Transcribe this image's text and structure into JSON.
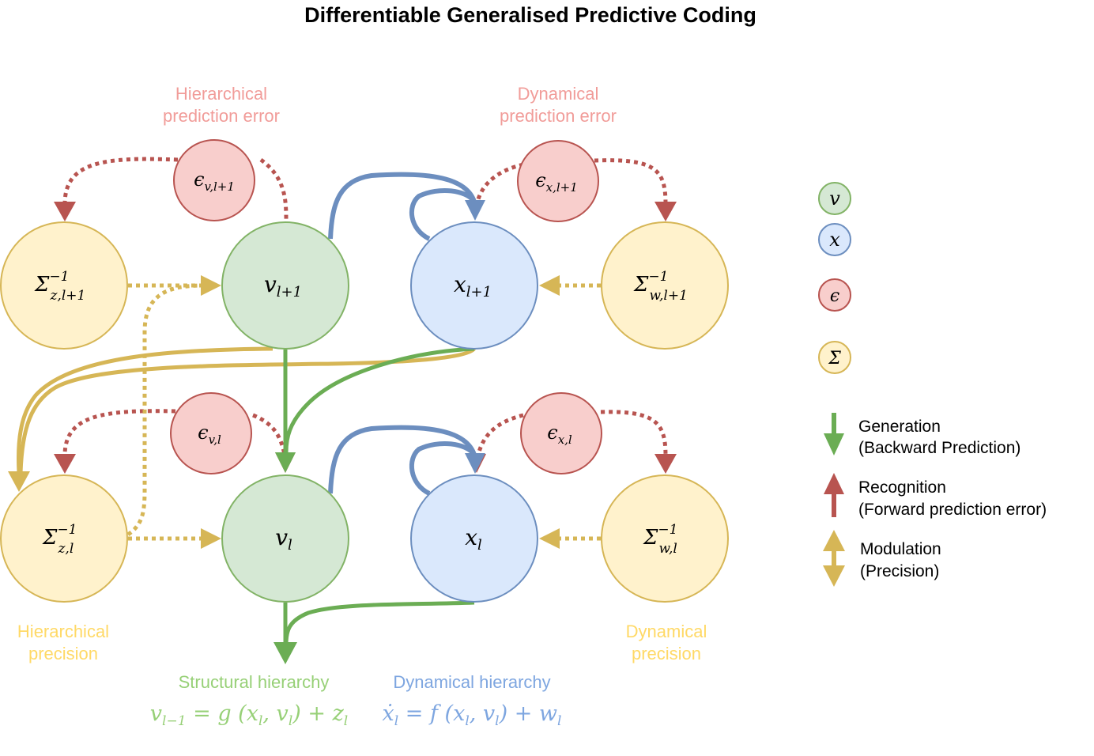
{
  "title": "Differentiable Generalised Predictive Coding",
  "colors": {
    "green_fill": "#d5e8d4",
    "green_stroke": "#82b366",
    "green_arrow": "#6bad54",
    "blue_fill": "#dae8fc",
    "blue_stroke": "#6c8ebf",
    "red_fill": "#f8cecc",
    "red_stroke": "#b85450",
    "yellow_fill": "#fff2cc",
    "yellow_stroke": "#d6b656",
    "pink_text": "#f19c99",
    "yellow_text": "#ffd966",
    "green_text": "#97d077",
    "blue_text": "#7ea6e0"
  },
  "labels": {
    "hier_error": [
      "Hierarchical",
      "prediction error"
    ],
    "dyn_error": [
      "Dynamical",
      "prediction error"
    ],
    "hier_precision": [
      "Hierarchical",
      "precision"
    ],
    "dyn_precision": [
      "Dynamical",
      "precision"
    ],
    "structural": "Structural hierarchy",
    "dynamical": "Dynamical hierarchy"
  },
  "equations": {
    "structural": {
      "lhs": "v",
      "lhs_sub": "l−1",
      "rhs": " = g (x",
      "s1": "l",
      "m1": ", v",
      "s2": "l",
      "m2": ") + z",
      "s3": "l"
    },
    "dynamical": {
      "lhs": "ẋ",
      "lhs_sub": "l",
      "rhs": " = f (x",
      "s1": "l",
      "m1": ", v",
      "s2": "l",
      "m2": ") + w",
      "s3": "l"
    }
  },
  "nodes": {
    "v_top": {
      "base": "v",
      "sub": "l+1"
    },
    "x_top": {
      "base": "x",
      "sub": "l+1"
    },
    "v_bot": {
      "base": "v",
      "sub": "l"
    },
    "x_bot": {
      "base": "x",
      "sub": "l"
    },
    "sz_top": {
      "base": "Σ",
      "sup": "−1",
      "sub": "z,l+1"
    },
    "sw_top": {
      "base": "Σ",
      "sup": "−1",
      "sub": "w,l+1"
    },
    "sz_bot": {
      "base": "Σ",
      "sup": "−1",
      "sub": "z,l"
    },
    "sw_bot": {
      "base": "Σ",
      "sup": "−1",
      "sub": "w,l"
    },
    "ev_top": {
      "base": "ϵ",
      "sub": "v,l+1"
    },
    "ex_top": {
      "base": "ϵ",
      "sub": "x,l+1"
    },
    "ev_bot": {
      "base": "ϵ",
      "sub": "v,l"
    },
    "ex_bot": {
      "base": "ϵ",
      "sub": "x,l"
    }
  },
  "legend": {
    "nodes": [
      {
        "symbol": "v",
        "color": "green"
      },
      {
        "symbol": "x",
        "color": "blue"
      },
      {
        "symbol": "ϵ",
        "color": "red"
      },
      {
        "symbol": "Σ",
        "color": "yellow"
      }
    ],
    "arrows": [
      {
        "line1": "Generation",
        "line2": "(Backward Prediction)",
        "icon": "arrow-down-green-icon"
      },
      {
        "line1": "Recognition",
        "line2": "(Forward prediction error)",
        "icon": "arrow-up-red-icon"
      },
      {
        "line1": "Modulation",
        "line2": "(Precision)",
        "icon": "arrow-updown-yellow-icon"
      }
    ]
  }
}
